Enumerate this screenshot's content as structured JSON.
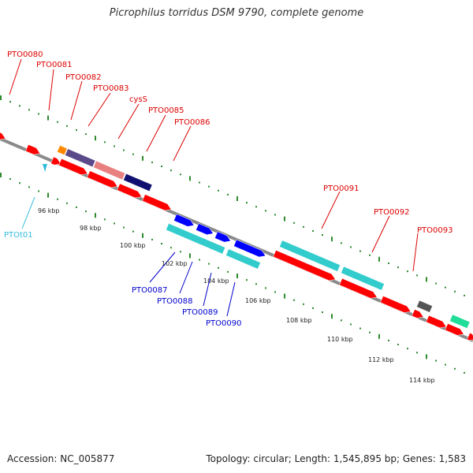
{
  "title": "Picrophilus torridus DSM 9790, complete genome",
  "footer": {
    "accession": "Accession: NC_005877",
    "topology": "Topology: circular; Length: 1,545,895 bp; Genes: 1,583"
  },
  "colors": {
    "backbone": "#888888",
    "forward_ticks": "#2e8b2e",
    "red_gene": "#ff0000",
    "cyan_gene": "#33cccc",
    "blue_gene": "#0000ff",
    "label_red": "#dd0000",
    "label_blue": "#0000cc",
    "label_cyan": "#33bbdd"
  },
  "gene_labels_top": [
    "PTO0080",
    "PTO0081",
    "PTO0082",
    "PTO0083",
    "cysS",
    "PTO0085",
    "PTO0086",
    "PTO0091",
    "PTO0092",
    "PTO0093"
  ],
  "gene_labels_bottom": [
    "PTO0087",
    "PTO0088",
    "PTO0089",
    "PTO0090"
  ],
  "rna_labels": [
    "PTOt01"
  ],
  "scale_labels": [
    "96 kbp",
    "98 kbp",
    "100 kbp",
    "102 kbp",
    "104 kbp",
    "106 kbp",
    "108 kbp",
    "110 kbp",
    "112 kbp",
    "114 kbp"
  ]
}
